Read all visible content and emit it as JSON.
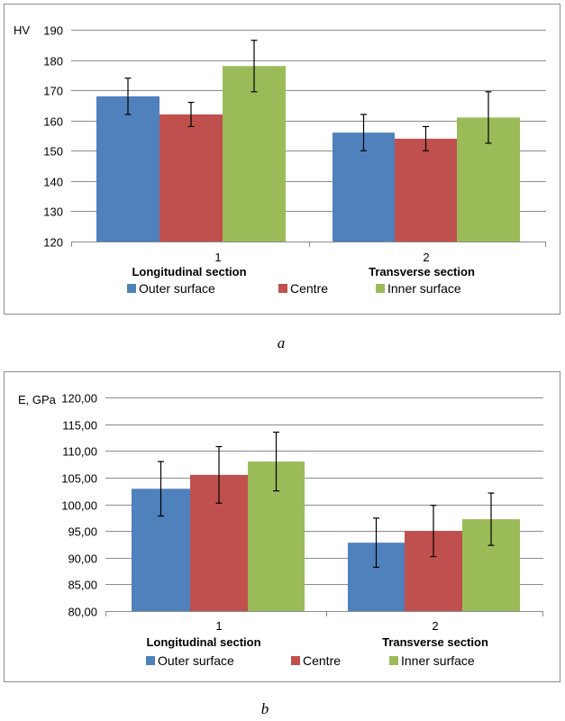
{
  "chart_data": [
    {
      "type": "bar",
      "panel_label": "a",
      "ylabel": "HV",
      "ylim": [
        120,
        190
      ],
      "yticks": [
        "120",
        "130",
        "140",
        "150",
        "160",
        "170",
        "180",
        "190"
      ],
      "categories": [
        "1",
        "2"
      ],
      "category_names": [
        "Longitudinal section",
        "Transverse section"
      ],
      "grid": true,
      "legend_position": "bottom",
      "series": [
        {
          "name": "Outer surface",
          "color": "#4f81bd",
          "values": [
            168,
            156
          ],
          "errors": [
            6,
            6
          ]
        },
        {
          "name": "Centre",
          "color": "#c0504d",
          "values": [
            162,
            154
          ],
          "errors": [
            4,
            4
          ]
        },
        {
          "name": "Inner surface",
          "color": "#9bbb59",
          "values": [
            178,
            161
          ],
          "errors": [
            8.5,
            8.5
          ]
        }
      ]
    },
    {
      "type": "bar",
      "panel_label": "b",
      "ylabel": "E, GPa",
      "ylim": [
        80,
        120
      ],
      "yticks": [
        "80,00",
        "85,00",
        "90,00",
        "95,00",
        "100,00",
        "105,00",
        "110,00",
        "115,00",
        "120,00"
      ],
      "categories": [
        "1",
        "2"
      ],
      "category_names": [
        "Longitudinal section",
        "Transverse section"
      ],
      "grid": true,
      "legend_position": "bottom",
      "series": [
        {
          "name": "Outer surface",
          "color": "#4f81bd",
          "values": [
            102.9,
            92.8
          ],
          "errors": [
            5.1,
            4.6
          ]
        },
        {
          "name": "Centre",
          "color": "#c0504d",
          "values": [
            105.5,
            95.0
          ],
          "errors": [
            5.3,
            4.8
          ]
        },
        {
          "name": "Inner surface",
          "color": "#9bbb59",
          "values": [
            108.0,
            97.2
          ],
          "errors": [
            5.5,
            4.9
          ]
        }
      ]
    }
  ]
}
